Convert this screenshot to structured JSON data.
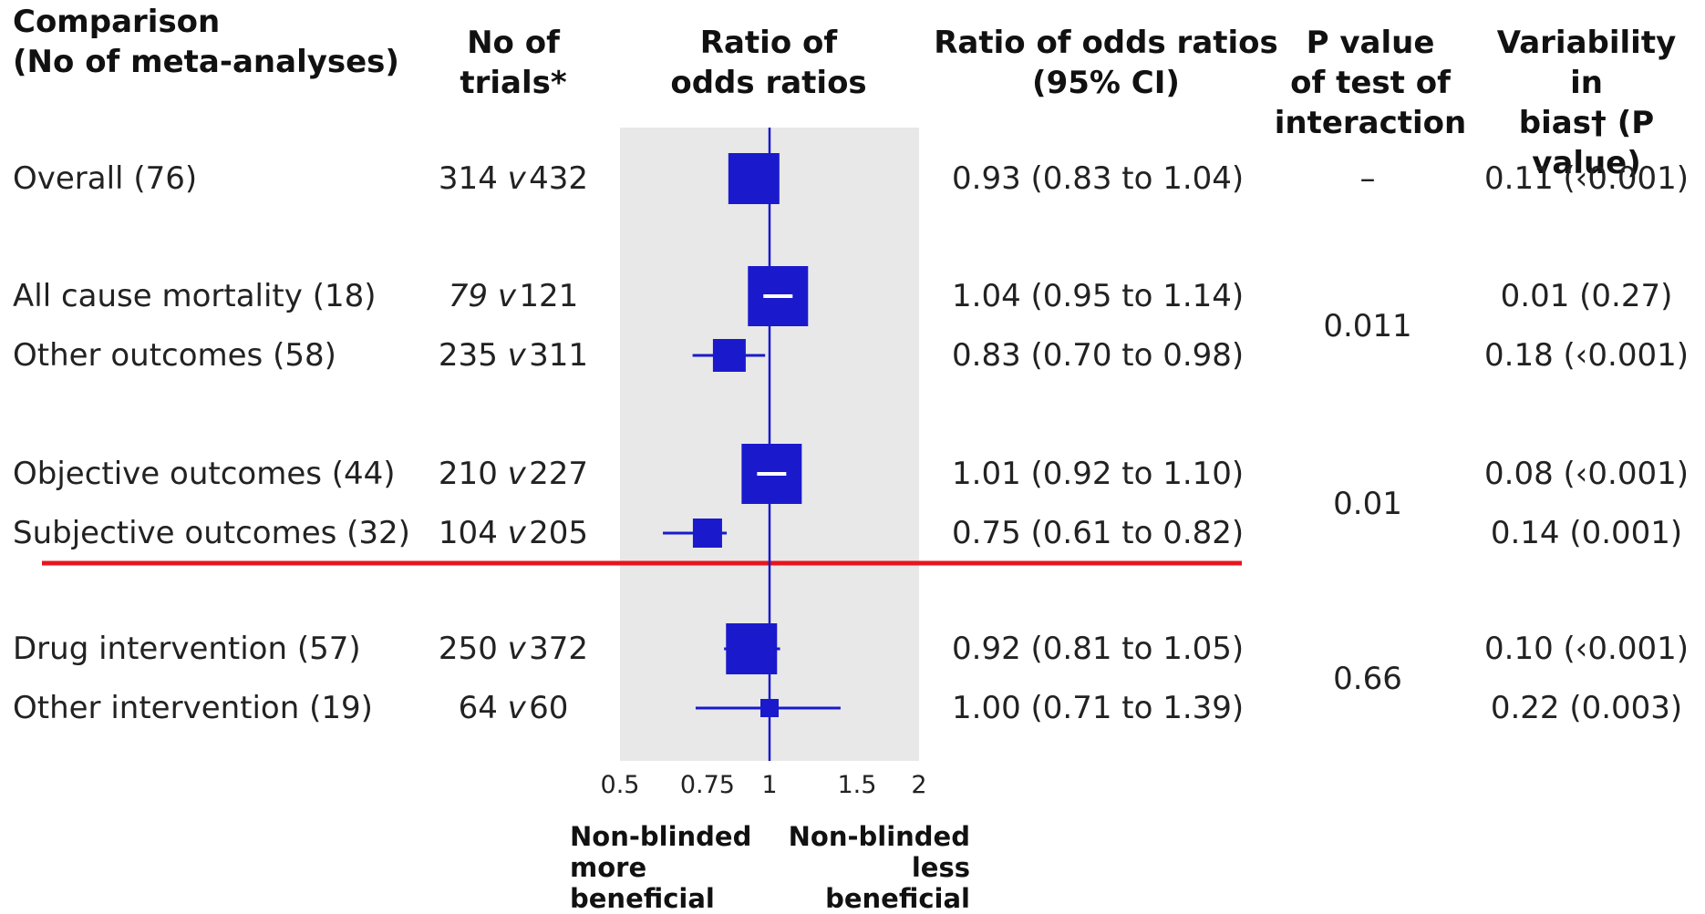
{
  "headers": {
    "comparison": "Comparison\n(No of meta-analyses)",
    "trials": "No of\ntrials*",
    "ratio": "Ratio of\nodds ratios",
    "ci": "Ratio of odds ratios\n(95% CI)",
    "pvalue": "P value\nof test of\ninteraction",
    "variability": "Variability in\nbias† (P value)"
  },
  "rows": [
    {
      "label": "Overall (76)",
      "trials_a": "314",
      "v": "v",
      "trials_b": "432",
      "ci_text": "0.93 (0.83 to 1.04)",
      "variability": "0.11 (‹0.001)"
    },
    {
      "label": "All cause mortality (18)",
      "trials_a": "79",
      "v": "v",
      "trials_b": "121",
      "ci_text": "1.04 (0.95 to 1.14)",
      "variability": "0.01 (0.27)"
    },
    {
      "label": "Other outcomes (58)",
      "trials_a": "235",
      "v": "v",
      "trials_b": "311",
      "ci_text": "0.83 (0.70 to 0.98)",
      "variability": "0.18 (‹0.001)"
    },
    {
      "label": "Objective outcomes (44)",
      "trials_a": "210",
      "v": "v",
      "trials_b": "227",
      "ci_text": "1.01 (0.92 to 1.10)",
      "variability": "0.08 (‹0.001)"
    },
    {
      "label": "Subjective outcomes (32)",
      "trials_a": "104",
      "v": "v",
      "trials_b": "205",
      "ci_text": "0.75 (0.61 to 0.82)",
      "variability": "0.14 (0.001)"
    },
    {
      "label": "Drug intervention (57)",
      "trials_a": "250",
      "v": "v",
      "trials_b": "372",
      "ci_text": "0.92 (0.81 to 1.05)",
      "variability": "0.10 (‹0.001)"
    },
    {
      "label": "Other intervention (19)",
      "trials_a": "64",
      "v": "v",
      "trials_b": "60",
      "ci_text": "1.00 (0.71 to 1.39)",
      "variability": "0.22 (0.003)"
    }
  ],
  "interaction_p": [
    {
      "value": "–"
    },
    {
      "value": "0.011"
    },
    {
      "value": "0.01"
    },
    {
      "value": "0.66"
    }
  ],
  "footer": {
    "left": "Non-blinded\nmore\nbeneficial",
    "right": "Non-blinded\nless\nbeneficial"
  },
  "colors": {
    "marker": "#1a1acc",
    "shade": "#e8e8e8",
    "divider": "#e8141e",
    "text": "#222222"
  },
  "chart_data": {
    "type": "forest",
    "scale": "log",
    "xlim": [
      0.5,
      2
    ],
    "reference_line": 1,
    "xticks": [
      0.5,
      0.75,
      1,
      1.5,
      2
    ],
    "xtick_labels": [
      "0.5",
      "0.75",
      "1",
      "1.5",
      "2"
    ],
    "points": [
      {
        "label": "Overall (76)",
        "estimate": 0.93,
        "lower": 0.83,
        "upper": 1.04,
        "weight": "large",
        "inner_dash": false
      },
      {
        "label": "All cause mortality (18)",
        "estimate": 1.04,
        "lower": 0.95,
        "upper": 1.14,
        "weight": "xlarge",
        "inner_dash": true
      },
      {
        "label": "Other outcomes (58)",
        "estimate": 0.83,
        "lower": 0.7,
        "upper": 0.98,
        "weight": "medium",
        "inner_dash": false
      },
      {
        "label": "Objective outcomes (44)",
        "estimate": 1.01,
        "lower": 0.92,
        "upper": 1.1,
        "weight": "xlarge",
        "inner_dash": true
      },
      {
        "label": "Subjective outcomes (32)",
        "estimate": 0.75,
        "lower": 0.61,
        "upper": 0.82,
        "weight": "small",
        "inner_dash": false
      },
      {
        "label": "Drug intervention (57)",
        "estimate": 0.92,
        "lower": 0.81,
        "upper": 1.05,
        "weight": "large",
        "inner_dash": false
      },
      {
        "label": "Other intervention (19)",
        "estimate": 1.0,
        "lower": 0.71,
        "upper": 1.39,
        "weight": "tiny",
        "inner_dash": false
      }
    ]
  }
}
